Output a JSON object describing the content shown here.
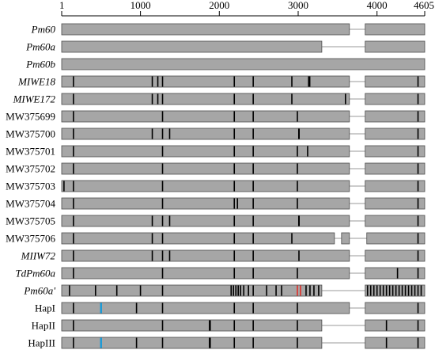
{
  "axis": {
    "min": 1,
    "max": 4605,
    "ticks": [
      {
        "value": 1,
        "label": "1"
      },
      {
        "value": 1000,
        "label": "1000"
      },
      {
        "value": 2000,
        "label": "2000"
      },
      {
        "value": 3000,
        "label": "3000"
      },
      {
        "value": 4000,
        "label": "4000"
      },
      {
        "value": 4605,
        "label": "4605"
      }
    ]
  },
  "colors": {
    "segment_fill": "#a6a6a6",
    "segment_stroke": "#4d4d4d",
    "connector": "#9a9a9a",
    "mark_default": "#000000",
    "mark_blue": "#1f9bd6",
    "mark_red": "#e0302a"
  },
  "rows": [
    {
      "label": "Pm60",
      "italic": true,
      "segments": [
        [
          1,
          3650
        ],
        [
          3850,
          4605
        ]
      ],
      "marks": []
    },
    {
      "label": "Pm60a",
      "italic": true,
      "segments": [
        [
          1,
          3300
        ],
        [
          3850,
          4605
        ]
      ],
      "marks": []
    },
    {
      "label": "Pm60b",
      "italic": true,
      "segments": [
        [
          1,
          4605
        ]
      ],
      "marks": []
    },
    {
      "label": "MIWE18",
      "italic": true,
      "segments": [
        [
          1,
          3650
        ],
        [
          3850,
          4605
        ]
      ],
      "marks": [
        {
          "pos": 150
        },
        {
          "pos": 1150
        },
        {
          "pos": 1220
        },
        {
          "pos": 1280
        },
        {
          "pos": 2190
        },
        {
          "pos": 2430
        },
        {
          "pos": 2920
        },
        {
          "pos": 3140,
          "w": 3
        },
        {
          "pos": 4520
        }
      ]
    },
    {
      "label": "MIWE172",
      "italic": true,
      "segments": [
        [
          1,
          3650
        ],
        [
          3850,
          4605
        ]
      ],
      "marks": [
        {
          "pos": 150
        },
        {
          "pos": 1150
        },
        {
          "pos": 1220
        },
        {
          "pos": 1280
        },
        {
          "pos": 2190
        },
        {
          "pos": 2430
        },
        {
          "pos": 2920
        },
        {
          "pos": 3600
        },
        {
          "pos": 4520
        }
      ]
    },
    {
      "label": "MW375699",
      "segments": [
        [
          1,
          3650
        ],
        [
          3850,
          4605
        ]
      ],
      "marks": [
        {
          "pos": 150
        },
        {
          "pos": 1280
        },
        {
          "pos": 2190
        },
        {
          "pos": 2430
        },
        {
          "pos": 2990
        },
        {
          "pos": 4520
        }
      ]
    },
    {
      "label": "MW375700",
      "segments": [
        [
          1,
          3650
        ],
        [
          3850,
          4605
        ]
      ],
      "marks": [
        {
          "pos": 150
        },
        {
          "pos": 1150
        },
        {
          "pos": 1280
        },
        {
          "pos": 1370
        },
        {
          "pos": 2190
        },
        {
          "pos": 2430
        },
        {
          "pos": 3010,
          "w": 2
        },
        {
          "pos": 4520
        }
      ]
    },
    {
      "label": "MW375701",
      "segments": [
        [
          1,
          3650
        ],
        [
          3850,
          4605
        ]
      ],
      "marks": [
        {
          "pos": 150
        },
        {
          "pos": 1280
        },
        {
          "pos": 2190
        },
        {
          "pos": 2430
        },
        {
          "pos": 2990
        },
        {
          "pos": 3120
        },
        {
          "pos": 4520
        }
      ]
    },
    {
      "label": "MW375702",
      "segments": [
        [
          1,
          3650
        ],
        [
          3850,
          4605
        ]
      ],
      "marks": [
        {
          "pos": 150
        },
        {
          "pos": 1280
        },
        {
          "pos": 2190
        },
        {
          "pos": 2430
        },
        {
          "pos": 2990
        },
        {
          "pos": 4520
        }
      ]
    },
    {
      "label": "MW375703",
      "segments": [
        [
          1,
          3650
        ],
        [
          3850,
          4605
        ]
      ],
      "marks": [
        {
          "pos": 30
        },
        {
          "pos": 150
        },
        {
          "pos": 1280
        },
        {
          "pos": 2190
        },
        {
          "pos": 2430
        },
        {
          "pos": 2990
        },
        {
          "pos": 4520
        }
      ]
    },
    {
      "label": "MW375704",
      "segments": [
        [
          1,
          3650
        ],
        [
          3850,
          4605
        ]
      ],
      "marks": [
        {
          "pos": 150
        },
        {
          "pos": 1280
        },
        {
          "pos": 2190
        },
        {
          "pos": 2230
        },
        {
          "pos": 2430
        },
        {
          "pos": 2990
        },
        {
          "pos": 4520
        }
      ]
    },
    {
      "label": "MW375705",
      "segments": [
        [
          1,
          3650
        ],
        [
          3850,
          4605
        ]
      ],
      "marks": [
        {
          "pos": 150
        },
        {
          "pos": 1150
        },
        {
          "pos": 1280
        },
        {
          "pos": 1370
        },
        {
          "pos": 2190
        },
        {
          "pos": 2430
        },
        {
          "pos": 3010,
          "w": 2
        },
        {
          "pos": 4520
        }
      ]
    },
    {
      "label": "MW375706",
      "segments": [
        [
          1,
          3460
        ],
        [
          3550,
          3650
        ],
        [
          3870,
          4605
        ]
      ],
      "marks": [
        {
          "pos": 150
        },
        {
          "pos": 1150
        },
        {
          "pos": 1280
        },
        {
          "pos": 2190
        },
        {
          "pos": 2430
        },
        {
          "pos": 2920
        },
        {
          "pos": 4520
        }
      ]
    },
    {
      "label": "MIIW72",
      "italic": true,
      "segments": [
        [
          1,
          3650
        ],
        [
          3850,
          4605
        ]
      ],
      "marks": [
        {
          "pos": 150
        },
        {
          "pos": 1150
        },
        {
          "pos": 1280
        },
        {
          "pos": 1370
        },
        {
          "pos": 2190
        },
        {
          "pos": 2430
        },
        {
          "pos": 3010
        },
        {
          "pos": 4520
        }
      ]
    },
    {
      "label": "TdPm60a",
      "italic": true,
      "segments": [
        [
          1,
          3650
        ],
        [
          3850,
          4605
        ]
      ],
      "marks": [
        {
          "pos": 150
        },
        {
          "pos": 1280
        },
        {
          "pos": 2190
        },
        {
          "pos": 2430
        },
        {
          "pos": 2990
        },
        {
          "pos": 4260
        },
        {
          "pos": 4520
        }
      ]
    },
    {
      "label": "Pm60a'",
      "italic": true,
      "segments": [
        [
          1,
          3300
        ],
        [
          3850,
          4605
        ]
      ],
      "marks": [
        {
          "pos": 100
        },
        {
          "pos": 430
        },
        {
          "pos": 700
        },
        {
          "pos": 1000
        },
        {
          "pos": 1280
        },
        {
          "pos": 2150
        },
        {
          "pos": 2180
        },
        {
          "pos": 2210
        },
        {
          "pos": 2240
        },
        {
          "pos": 2270
        },
        {
          "pos": 2310
        },
        {
          "pos": 2370
        },
        {
          "pos": 2430
        },
        {
          "pos": 2600
        },
        {
          "pos": 2720
        },
        {
          "pos": 2790
        },
        {
          "pos": 2990,
          "c": "red"
        },
        {
          "pos": 3030,
          "c": "red"
        },
        {
          "pos": 3100
        },
        {
          "pos": 3150
        },
        {
          "pos": 3200
        },
        {
          "pos": 3260
        },
        {
          "pos": 3880
        },
        {
          "pos": 3920
        },
        {
          "pos": 3960
        },
        {
          "pos": 4000
        },
        {
          "pos": 4040
        },
        {
          "pos": 4080
        },
        {
          "pos": 4120
        },
        {
          "pos": 4160
        },
        {
          "pos": 4200
        },
        {
          "pos": 4240
        },
        {
          "pos": 4280
        },
        {
          "pos": 4320
        },
        {
          "pos": 4360
        },
        {
          "pos": 4400
        },
        {
          "pos": 4440
        },
        {
          "pos": 4480
        },
        {
          "pos": 4520
        },
        {
          "pos": 4560
        }
      ]
    },
    {
      "label": "HapI",
      "segments": [
        [
          1,
          3650
        ],
        [
          3850,
          4605
        ]
      ],
      "marks": [
        {
          "pos": 150
        },
        {
          "pos": 500,
          "c": "blue",
          "w": 2.5
        },
        {
          "pos": 950
        },
        {
          "pos": 1280
        },
        {
          "pos": 2190
        },
        {
          "pos": 2430
        },
        {
          "pos": 2990
        },
        {
          "pos": 4520
        }
      ]
    },
    {
      "label": "HapII",
      "segments": [
        [
          1,
          3300
        ],
        [
          3850,
          4605
        ]
      ],
      "marks": [
        {
          "pos": 150
        },
        {
          "pos": 1280
        },
        {
          "pos": 1880,
          "w": 2.5
        },
        {
          "pos": 2190
        },
        {
          "pos": 2430
        },
        {
          "pos": 2990
        },
        {
          "pos": 4120
        },
        {
          "pos": 4520
        }
      ]
    },
    {
      "label": "HapIII",
      "segments": [
        [
          1,
          3300
        ],
        [
          3850,
          4605
        ]
      ],
      "marks": [
        {
          "pos": 150
        },
        {
          "pos": 500,
          "c": "blue",
          "w": 2.5
        },
        {
          "pos": 950
        },
        {
          "pos": 1280
        },
        {
          "pos": 1880,
          "w": 2.5
        },
        {
          "pos": 2190
        },
        {
          "pos": 2430
        },
        {
          "pos": 2990
        },
        {
          "pos": 4120
        },
        {
          "pos": 4520
        }
      ]
    }
  ]
}
